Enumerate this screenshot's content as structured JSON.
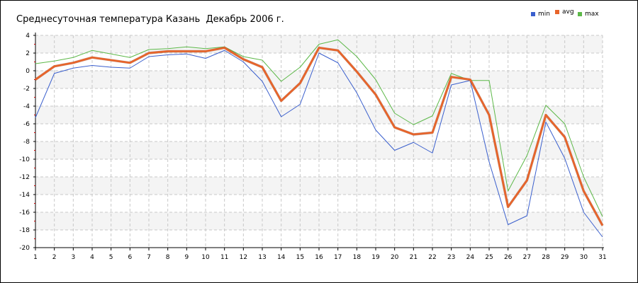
{
  "chart_data": {
    "type": "line",
    "title": "Среднесуточная температура Казань  Декабрь 2006 г.",
    "xlabel": "",
    "ylabel": "",
    "x": [
      1,
      2,
      3,
      4,
      5,
      6,
      7,
      8,
      9,
      10,
      11,
      12,
      13,
      14,
      15,
      16,
      17,
      18,
      19,
      20,
      21,
      22,
      23,
      24,
      25,
      26,
      27,
      28,
      29,
      30,
      31
    ],
    "xlim": [
      1,
      31
    ],
    "ylim": [
      -20,
      4
    ],
    "y_ticks": [
      4,
      2,
      0,
      -2,
      -4,
      -6,
      -8,
      -10,
      -12,
      -14,
      -16,
      -18,
      -20
    ],
    "grid": true,
    "legend_position": "top-right",
    "series": [
      {
        "name": "min",
        "color": "#3a5fcd",
        "values": [
          -5.3,
          -0.3,
          0.3,
          0.6,
          0.4,
          0.3,
          1.6,
          1.8,
          1.9,
          1.4,
          2.3,
          1.0,
          -1.2,
          -5.2,
          -3.8,
          2.0,
          0.9,
          -2.5,
          -6.7,
          -9.0,
          -8.1,
          -9.3,
          -1.6,
          -1.1,
          -10.3,
          -17.4,
          -16.4,
          -5.8,
          -9.9,
          -16.0,
          -18.8
        ]
      },
      {
        "name": "avg",
        "color": "#e8642a",
        "values": [
          -1.0,
          0.5,
          0.9,
          1.5,
          1.2,
          0.9,
          2.0,
          2.2,
          2.2,
          2.2,
          2.6,
          1.3,
          0.4,
          -3.4,
          -1.4,
          2.6,
          2.3,
          -0.1,
          -2.7,
          -6.4,
          -7.2,
          -7.0,
          -0.7,
          -1.0,
          -5.0,
          -15.4,
          -12.4,
          -5.0,
          -7.5,
          -13.6,
          -17.5
        ]
      },
      {
        "name": "max",
        "color": "#5cb848",
        "values": [
          0.8,
          1.1,
          1.5,
          2.3,
          1.9,
          1.5,
          2.4,
          2.5,
          2.7,
          2.5,
          2.7,
          1.6,
          1.2,
          -1.2,
          0.4,
          3.0,
          3.5,
          1.6,
          -1.0,
          -4.8,
          -6.1,
          -5.1,
          -0.3,
          -1.1,
          -1.1,
          -13.6,
          -9.6,
          -3.9,
          -6.0,
          -12.0,
          -16.5
        ]
      }
    ]
  }
}
